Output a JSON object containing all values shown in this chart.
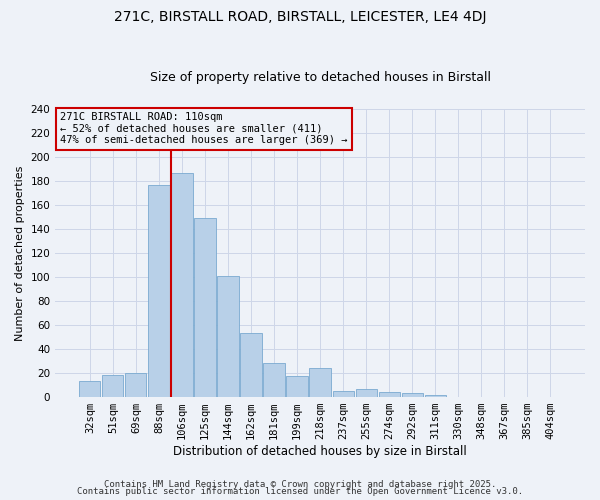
{
  "title1": "271C, BIRSTALL ROAD, BIRSTALL, LEICESTER, LE4 4DJ",
  "title2": "Size of property relative to detached houses in Birstall",
  "xlabel": "Distribution of detached houses by size in Birstall",
  "ylabel": "Number of detached properties",
  "categories": [
    "32sqm",
    "51sqm",
    "69sqm",
    "88sqm",
    "106sqm",
    "125sqm",
    "144sqm",
    "162sqm",
    "181sqm",
    "199sqm",
    "218sqm",
    "237sqm",
    "255sqm",
    "274sqm",
    "292sqm",
    "311sqm",
    "330sqm",
    "348sqm",
    "367sqm",
    "385sqm",
    "404sqm"
  ],
  "values": [
    13,
    18,
    20,
    177,
    187,
    149,
    101,
    53,
    28,
    17,
    24,
    5,
    6,
    4,
    3,
    1,
    0,
    0,
    0,
    0,
    0
  ],
  "bar_color": "#b8d0e8",
  "bar_edge_color": "#7aaad0",
  "vline_bar_index": 4,
  "vline_color": "#cc0000",
  "annotation_text": "271C BIRSTALL ROAD: 110sqm\n← 52% of detached houses are smaller (411)\n47% of semi-detached houses are larger (369) →",
  "annotation_box_edgecolor": "#cc0000",
  "grid_color": "#cdd6e8",
  "background_color": "#eef2f8",
  "footer1": "Contains HM Land Registry data © Crown copyright and database right 2025.",
  "footer2": "Contains public sector information licensed under the Open Government Licence v3.0.",
  "ylim": [
    0,
    240
  ],
  "yticks": [
    0,
    20,
    40,
    60,
    80,
    100,
    120,
    140,
    160,
    180,
    200,
    220,
    240
  ],
  "title1_fontsize": 10,
  "title2_fontsize": 9,
  "xlabel_fontsize": 8.5,
  "ylabel_fontsize": 8,
  "tick_fontsize": 7.5,
  "annotation_fontsize": 7.5,
  "footer_fontsize": 6.5
}
